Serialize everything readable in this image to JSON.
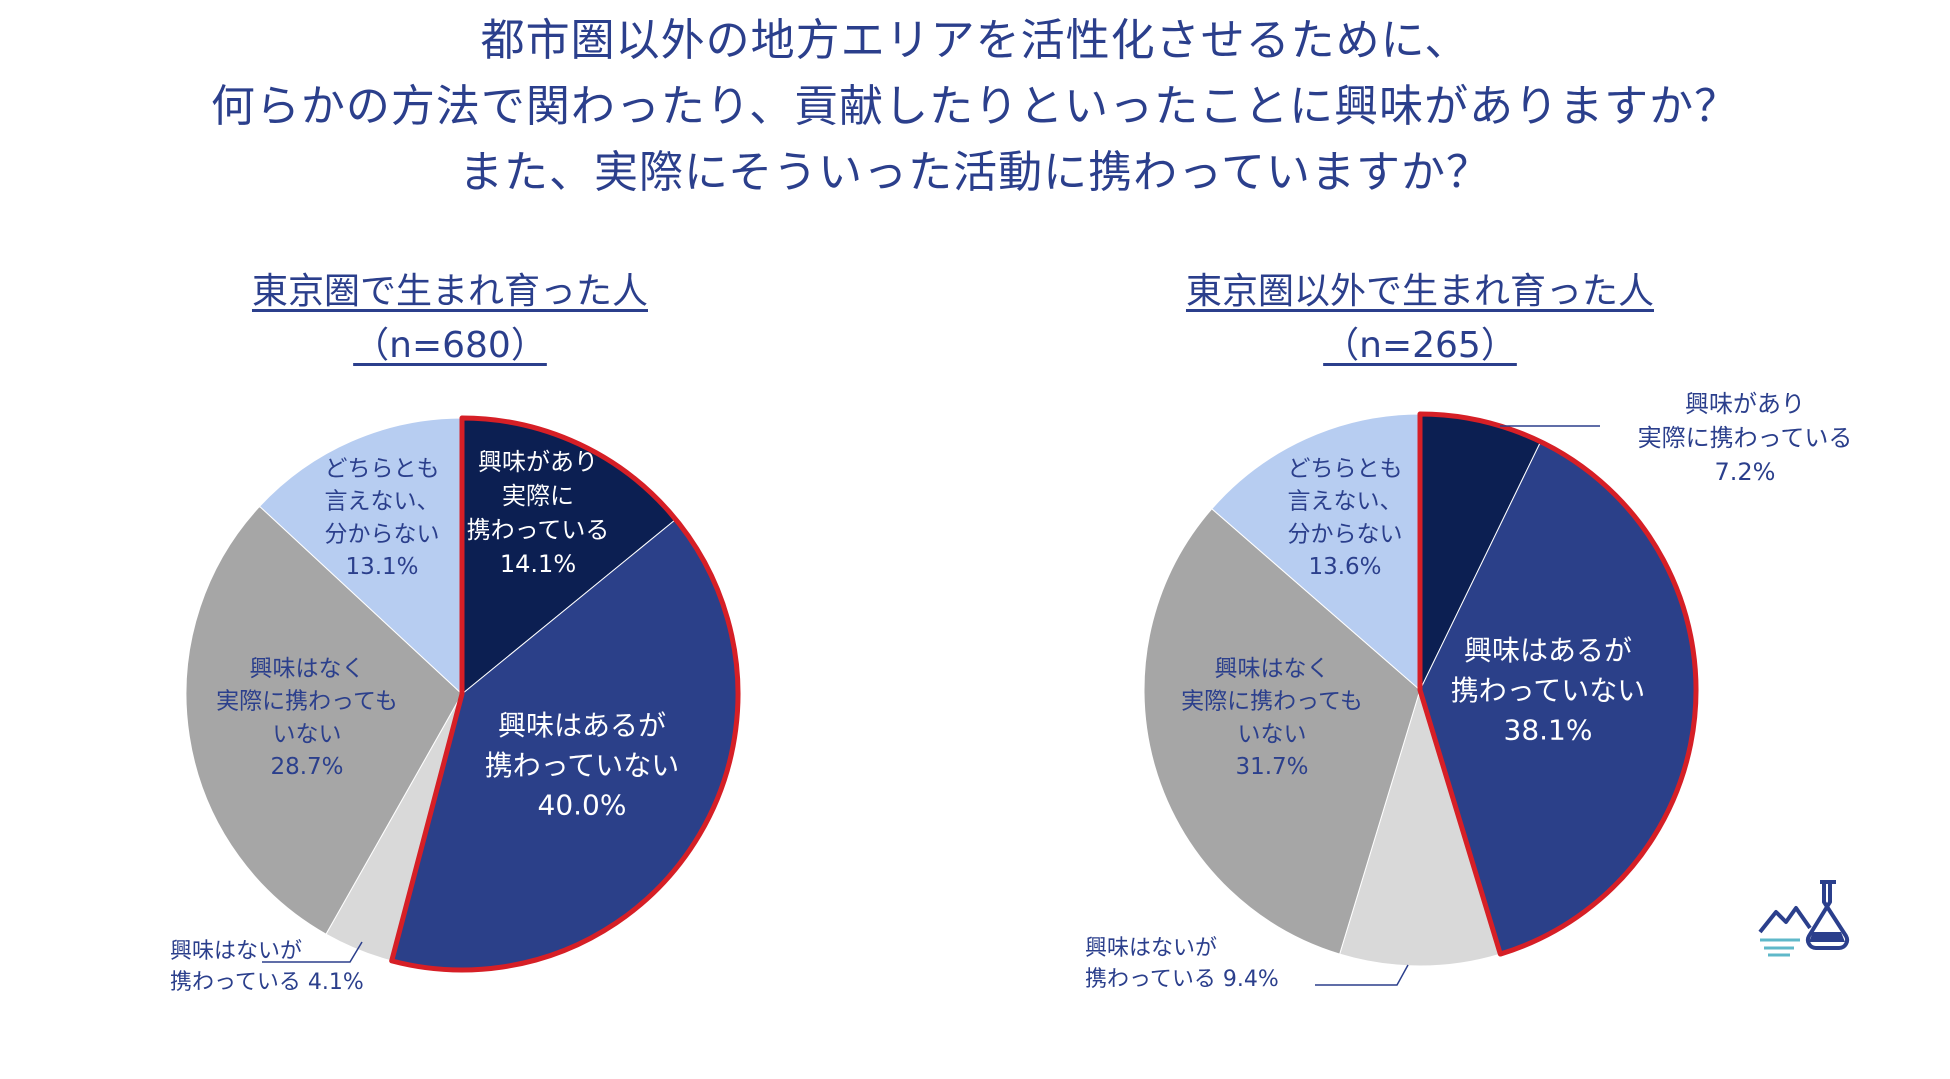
{
  "main_title": {
    "line1": "都市圏以外の地方エリアを活性化させるために、",
    "line2": "何らかの方法で関わったり、貢献したりといったことに興味がありますか？",
    "line3": "また、実際にそういった活動に携わっていますか？"
  },
  "colors": {
    "title": "#2b3f8c",
    "highlight_outline": "#d61f26"
  },
  "chart_data": [
    {
      "type": "pie",
      "title": "東京圏で生まれ育った人",
      "subtitle": "（n=680）",
      "slices": [
        {
          "label_lines": [
            "興味があり",
            "実際に",
            "携わっている"
          ],
          "value": 14.1,
          "value_label": "14.1%",
          "color": "#0c1f52",
          "text_color": "#ffffff"
        },
        {
          "label_lines": [
            "興味はあるが",
            "携わっていない"
          ],
          "value": 40.0,
          "value_label": "40.0%",
          "color": "#2b4089",
          "text_color": "#ffffff"
        },
        {
          "label_lines": [
            "興味はないが",
            "携わっている 4.1%"
          ],
          "value": 4.1,
          "value_label": "",
          "color": "#d9d9d9",
          "text_color": "#2b3f8c"
        },
        {
          "label_lines": [
            "興味はなく",
            "実際に携わっても",
            "いない"
          ],
          "value": 28.7,
          "value_label": "28.7%",
          "color": "#a6a6a6",
          "text_color": "#2b3f8c"
        },
        {
          "label_lines": [
            "どちらとも",
            "言えない、",
            "分からない"
          ],
          "value": 13.1,
          "value_label": "13.1%",
          "color": "#b7cdf1",
          "text_color": "#2b3f8c"
        }
      ]
    },
    {
      "type": "pie",
      "title": "東京圏以外で生まれ育った人",
      "subtitle": "（n=265）",
      "slices": [
        {
          "label_lines": [
            "興味があり",
            "実際に携わっている"
          ],
          "value": 7.2,
          "value_label": "7.2%",
          "color": "#0c1f52",
          "text_color": "#2b3f8c"
        },
        {
          "label_lines": [
            "興味はあるが",
            "携わっていない"
          ],
          "value": 38.1,
          "value_label": "38.1%",
          "color": "#2b4089",
          "text_color": "#ffffff"
        },
        {
          "label_lines": [
            "興味はないが",
            "携わっている 9.4%"
          ],
          "value": 9.4,
          "value_label": "",
          "color": "#d9d9d9",
          "text_color": "#2b3f8c"
        },
        {
          "label_lines": [
            "興味はなく",
            "実際に携わっても",
            "いない"
          ],
          "value": 31.7,
          "value_label": "31.7%",
          "color": "#a6a6a6",
          "text_color": "#2b3f8c"
        },
        {
          "label_lines": [
            "どちらとも",
            "言えない、",
            "分からない"
          ],
          "value": 13.6,
          "value_label": "13.6%",
          "color": "#b7cdf1",
          "text_color": "#2b3f8c"
        }
      ]
    }
  ]
}
